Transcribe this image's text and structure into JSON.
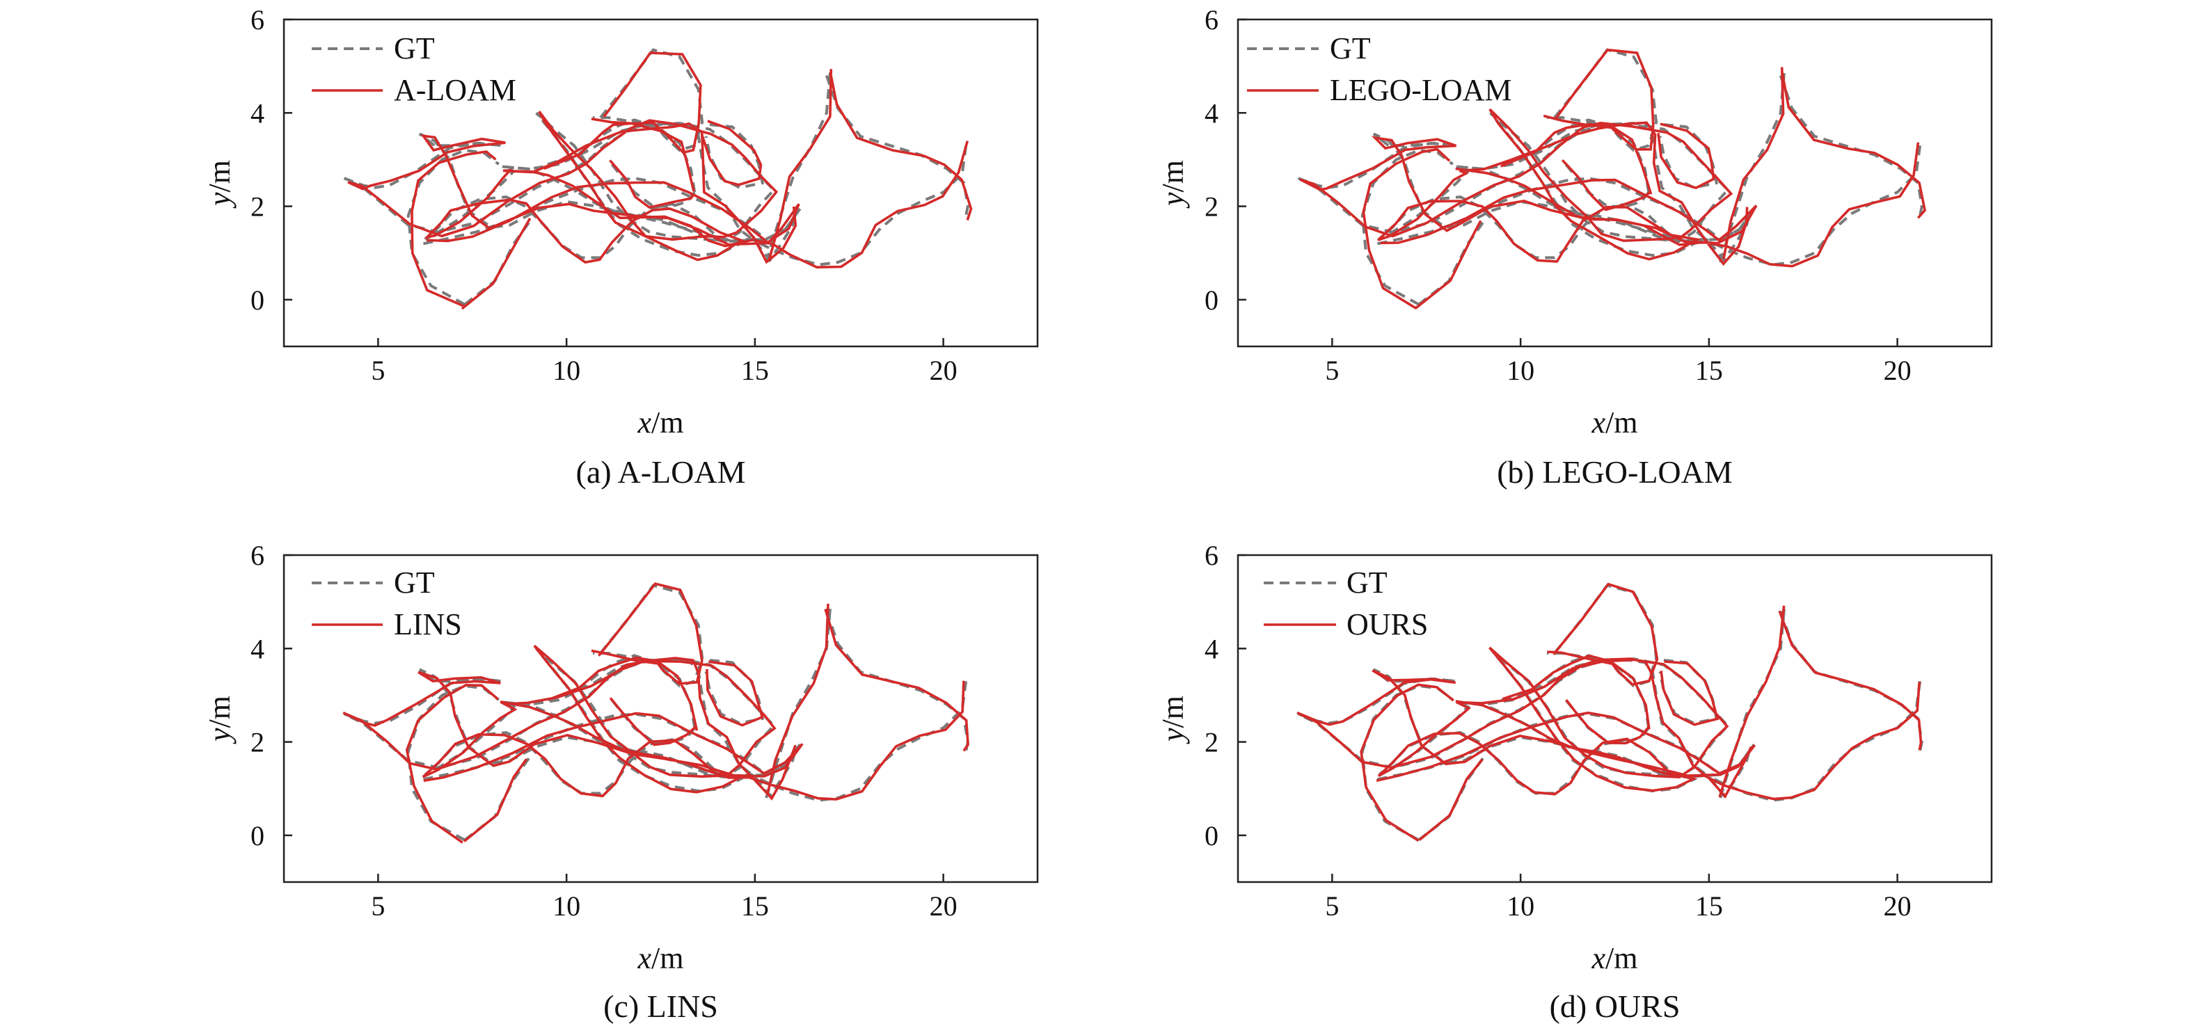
{
  "chart_data": [
    {
      "type": "line",
      "caption": "(a) A-LOAM",
      "xlabel_var": "x",
      "xlabel_unit": "/m",
      "ylabel_var": "y",
      "ylabel_unit": "/m",
      "xlim": [
        2.5,
        22.5
      ],
      "ylim": [
        -1,
        6
      ],
      "xticks": [
        5,
        10,
        15,
        20
      ],
      "yticks": [
        0,
        2,
        4,
        6
      ],
      "legend_position": "top-left",
      "series": [
        {
          "name": "GT",
          "style": "dashed"
        },
        {
          "name": "A-LOAM",
          "style": "solid"
        }
      ],
      "perturbation": 0.1
    },
    {
      "type": "line",
      "caption": "(b) LEGO-LOAM",
      "xlabel_var": "x",
      "xlabel_unit": "/m",
      "ylabel_var": "y",
      "ylabel_unit": "/m",
      "xlim": [
        2.5,
        22.5
      ],
      "ylim": [
        -1,
        6
      ],
      "xticks": [
        5,
        10,
        15,
        20
      ],
      "yticks": [
        0,
        2,
        4,
        6
      ],
      "legend_position": "top-left",
      "series": [
        {
          "name": "GT",
          "style": "dashed"
        },
        {
          "name": "LEGO-LOAM",
          "style": "solid"
        }
      ],
      "perturbation": 0.09
    },
    {
      "type": "line",
      "caption": "(c) LINS",
      "xlabel_var": "x",
      "xlabel_unit": "/m",
      "ylabel_var": "y",
      "ylabel_unit": "/m",
      "xlim": [
        2.5,
        22.5
      ],
      "ylim": [
        -1,
        6
      ],
      "xticks": [
        5,
        10,
        15,
        20
      ],
      "yticks": [
        0,
        2,
        4,
        6
      ],
      "legend_position": "top-left",
      "series": [
        {
          "name": "GT",
          "style": "dashed"
        },
        {
          "name": "LINS",
          "style": "solid"
        }
      ],
      "perturbation": 0.06
    },
    {
      "type": "line",
      "caption": "(d) OURS",
      "xlabel_var": "x",
      "xlabel_unit": "/m",
      "ylabel_var": "y",
      "ylabel_unit": "/m",
      "xlim": [
        2.5,
        22.5
      ],
      "ylim": [
        -1,
        6
      ],
      "xticks": [
        5,
        10,
        15,
        20
      ],
      "yticks": [
        0,
        2,
        4,
        6
      ],
      "legend_position": "top-left",
      "series": [
        {
          "name": "GT",
          "style": "dashed"
        },
        {
          "name": "OURS",
          "style": "solid"
        }
      ],
      "perturbation": 0.03
    }
  ],
  "trajectory_gt": [
    [
      6.2,
      1.2
    ],
    [
      6.8,
      1.3
    ],
    [
      7.6,
      1.45
    ],
    [
      8.5,
      1.7
    ],
    [
      9.5,
      2.1
    ],
    [
      10.3,
      2.35
    ],
    [
      11.2,
      2.55
    ],
    [
      11.8,
      2.6
    ],
    [
      12.5,
      2.5
    ],
    [
      13.3,
      2.2
    ],
    [
      14.2,
      1.9
    ],
    [
      14.8,
      1.6
    ],
    [
      15.3,
      1.3
    ],
    [
      15.8,
      1.5
    ],
    [
      16.2,
      1.95
    ],
    [
      15.8,
      1.5
    ],
    [
      15.3,
      1.3
    ],
    [
      14.4,
      1.25
    ],
    [
      13.5,
      1.45
    ],
    [
      12.6,
      1.65
    ],
    [
      11.8,
      1.8
    ],
    [
      10.8,
      2.0
    ],
    [
      10.0,
      2.1
    ],
    [
      9.2,
      1.9
    ],
    [
      8.5,
      1.6
    ],
    [
      8.0,
      1.55
    ],
    [
      7.4,
      1.9
    ],
    [
      7.1,
      2.5
    ],
    [
      6.9,
      3.0
    ],
    [
      6.5,
      3.4
    ],
    [
      6.1,
      3.55
    ],
    [
      6.5,
      3.3
    ],
    [
      7.0,
      3.3
    ],
    [
      7.7,
      3.35
    ],
    [
      8.3,
      3.3
    ],
    [
      7.6,
      3.35
    ],
    [
      6.9,
      3.25
    ],
    [
      6.0,
      2.75
    ],
    [
      5.3,
      2.45
    ],
    [
      4.9,
      2.4
    ],
    [
      4.6,
      2.45
    ],
    [
      4.1,
      2.6
    ],
    [
      4.6,
      2.4
    ],
    [
      5.2,
      2.0
    ],
    [
      5.8,
      1.6
    ],
    [
      6.6,
      1.45
    ],
    [
      7.6,
      1.65
    ],
    [
      8.5,
      2.05
    ],
    [
      9.2,
      2.4
    ],
    [
      10.0,
      2.7
    ],
    [
      10.6,
      3.0
    ],
    [
      11.0,
      3.3
    ],
    [
      11.6,
      3.6
    ],
    [
      12.2,
      3.75
    ],
    [
      13.0,
      3.78
    ],
    [
      13.8,
      3.65
    ],
    [
      14.3,
      3.35
    ],
    [
      14.8,
      2.95
    ],
    [
      15.2,
      2.6
    ],
    [
      15.5,
      2.35
    ],
    [
      15.1,
      2.0
    ],
    [
      14.6,
      1.45
    ],
    [
      14.2,
      1.25
    ],
    [
      13.6,
      1.3
    ],
    [
      12.8,
      1.35
    ],
    [
      12.2,
      1.45
    ],
    [
      11.7,
      1.7
    ],
    [
      11.2,
      2.1
    ],
    [
      10.7,
      2.75
    ],
    [
      10.2,
      3.3
    ],
    [
      9.6,
      3.7
    ],
    [
      9.2,
      4.0
    ],
    [
      9.5,
      3.7
    ],
    [
      10.0,
      3.2
    ],
    [
      10.5,
      2.6
    ],
    [
      11.0,
      2.0
    ],
    [
      11.4,
      1.6
    ],
    [
      12.0,
      1.3
    ],
    [
      12.8,
      1.05
    ],
    [
      13.5,
      0.95
    ],
    [
      14.1,
      1.0
    ],
    [
      14.6,
      1.2
    ],
    [
      14.0,
      1.35
    ],
    [
      13.4,
      1.8
    ],
    [
      12.8,
      2.05
    ],
    [
      12.2,
      1.95
    ],
    [
      11.7,
      1.6
    ],
    [
      11.3,
      1.15
    ],
    [
      10.9,
      0.9
    ],
    [
      10.4,
      0.9
    ],
    [
      9.9,
      1.15
    ],
    [
      9.4,
      1.6
    ],
    [
      8.9,
      2.0
    ],
    [
      8.4,
      2.2
    ],
    [
      7.7,
      2.15
    ],
    [
      7.0,
      1.9
    ],
    [
      6.6,
      1.55
    ],
    [
      6.25,
      1.3
    ],
    [
      6.6,
      1.45
    ],
    [
      7.2,
      1.75
    ],
    [
      7.8,
      2.15
    ],
    [
      8.3,
      2.5
    ],
    [
      8.6,
      2.75
    ],
    [
      8.3,
      2.85
    ],
    [
      9.0,
      2.8
    ],
    [
      9.8,
      2.9
    ],
    [
      10.6,
      3.2
    ],
    [
      11.4,
      3.6
    ],
    [
      12.1,
      3.75
    ],
    [
      12.9,
      3.75
    ],
    [
      13.3,
      3.7
    ],
    [
      13.5,
      3.5
    ],
    [
      13.6,
      3.0
    ],
    [
      13.75,
      2.4
    ],
    [
      14.2,
      2.05
    ],
    [
      14.6,
      1.5
    ],
    [
      15.0,
      1.25
    ],
    [
      15.4,
      0.85
    ],
    [
      15.7,
      1.2
    ],
    [
      16.0,
      1.6
    ],
    [
      16.1,
      1.9
    ]
  ],
  "trajectory_loops": [
    [
      [
        10.9,
        3.9
      ],
      [
        11.6,
        4.6
      ],
      [
        12.3,
        5.35
      ],
      [
        13.0,
        5.2
      ],
      [
        13.5,
        4.5
      ],
      [
        13.6,
        3.8
      ],
      [
        13.4,
        3.3
      ],
      [
        13.0,
        3.2
      ],
      [
        12.6,
        3.5
      ],
      [
        12.4,
        3.7
      ],
      [
        11.8,
        3.8
      ],
      [
        11.1,
        3.9
      ],
      [
        10.7,
        3.9
      ]
    ],
    [
      [
        7.3,
        -0.1
      ],
      [
        6.4,
        0.3
      ],
      [
        5.9,
        1.0
      ],
      [
        5.8,
        1.8
      ],
      [
        6.1,
        2.5
      ],
      [
        6.7,
        3.0
      ],
      [
        7.3,
        3.2
      ],
      [
        7.8,
        3.15
      ],
      [
        8.2,
        2.9
      ]
    ],
    [
      [
        7.3,
        -0.1
      ],
      [
        8.1,
        0.4
      ],
      [
        8.6,
        1.2
      ],
      [
        9.0,
        1.65
      ]
    ],
    [
      [
        9.5,
        2.9
      ],
      [
        10.3,
        3.1
      ],
      [
        10.9,
        3.5
      ],
      [
        11.3,
        3.7
      ],
      [
        11.8,
        3.85
      ],
      [
        12.4,
        3.7
      ],
      [
        13.0,
        3.35
      ],
      [
        13.3,
        2.8
      ],
      [
        13.4,
        2.3
      ]
    ],
    [
      [
        13.4,
        2.3
      ],
      [
        13.2,
        2.1
      ],
      [
        12.8,
        2.0
      ],
      [
        12.3,
        2.0
      ],
      [
        11.8,
        2.3
      ],
      [
        11.5,
        2.6
      ],
      [
        11.2,
        2.9
      ]
    ],
    [
      [
        15.3,
        0.8
      ],
      [
        15.6,
        1.6
      ],
      [
        16.0,
        2.6
      ],
      [
        16.5,
        3.3
      ],
      [
        16.9,
        4.0
      ],
      [
        17.0,
        4.9
      ]
    ],
    [
      [
        16.9,
        4.8
      ],
      [
        17.2,
        4.1
      ],
      [
        17.8,
        3.5
      ],
      [
        18.6,
        3.3
      ],
      [
        19.4,
        3.1
      ],
      [
        20.1,
        2.8
      ],
      [
        20.55,
        2.5
      ],
      [
        20.65,
        2.0
      ],
      [
        20.6,
        1.8
      ]
    ],
    [
      [
        20.6,
        3.3
      ],
      [
        20.5,
        2.7
      ],
      [
        20.0,
        2.3
      ],
      [
        19.4,
        2.1
      ],
      [
        18.8,
        1.85
      ],
      [
        18.3,
        1.5
      ],
      [
        17.8,
        1.0
      ],
      [
        17.2,
        0.8
      ],
      [
        16.7,
        0.75
      ],
      [
        16.0,
        0.9
      ],
      [
        15.4,
        1.1
      ],
      [
        14.9,
        1.3
      ],
      [
        14.3,
        1.25
      ],
      [
        13.8,
        1.3
      ],
      [
        13.2,
        1.5
      ],
      [
        12.6,
        1.7
      ],
      [
        12.0,
        1.8
      ],
      [
        11.4,
        1.85
      ],
      [
        10.8,
        2.05
      ],
      [
        10.2,
        2.35
      ],
      [
        9.6,
        2.6
      ],
      [
        9.0,
        2.8
      ],
      [
        8.3,
        2.85
      ]
    ],
    [
      [
        13.8,
        3.75
      ],
      [
        14.4,
        3.7
      ],
      [
        14.9,
        3.3
      ],
      [
        15.1,
        2.9
      ],
      [
        15.2,
        2.5
      ],
      [
        14.6,
        2.4
      ],
      [
        14.1,
        2.6
      ],
      [
        13.8,
        3.1
      ],
      [
        13.7,
        3.5
      ]
    ]
  ]
}
